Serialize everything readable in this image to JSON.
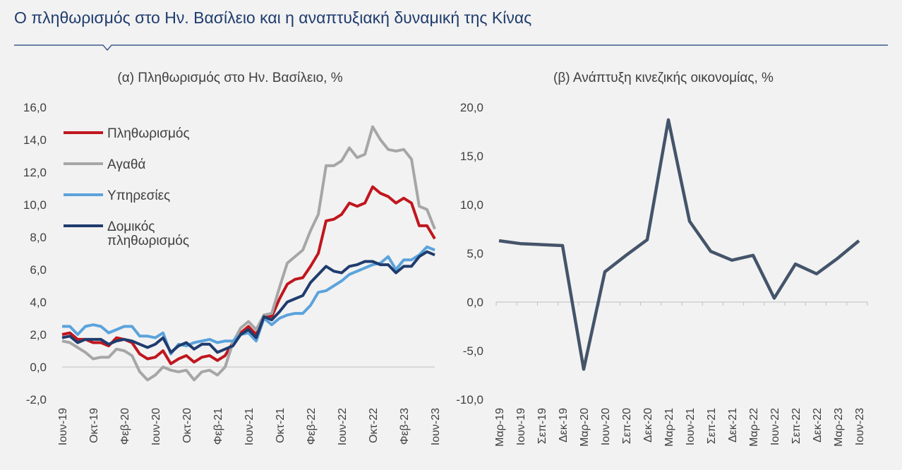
{
  "page": {
    "title": "Ο πληθωρισμός στο Ην. Βασίλειο και η αναπτυξιακή δυναμική της Κίνας",
    "header_rule_color": "#3d5d8c",
    "background": "#f2f2f2"
  },
  "chart_data": [
    {
      "type": "line",
      "title": "(α) Πληθωρισμός στο Ην. Βασίλειο, %",
      "xlabel": "",
      "ylabel": "",
      "ylim": [
        -2,
        16
      ],
      "y_ticks": [
        "-2,0",
        "0,0",
        "2,0",
        "4,0",
        "6,0",
        "8,0",
        "10,0",
        "12,0",
        "14,0",
        "16,0"
      ],
      "x_tick_labels": [
        "Ιουν-19",
        "Οκτ-19",
        "Φεβ-20",
        "Ιουν-20",
        "Οκτ-20",
        "Φεβ-21",
        "Ιουν-21",
        "Οκτ-21",
        "Φεβ-22",
        "Ιουν-22",
        "Οκτ-22",
        "Φεβ-23",
        "Ιουν-23"
      ],
      "x": [
        "Ιουν-19",
        "Ιουλ-19",
        "Αυγ-19",
        "Σεπ-19",
        "Οκτ-19",
        "Νοε-19",
        "Δεκ-19",
        "Ιαν-20",
        "Φεβ-20",
        "Μαρ-20",
        "Απρ-20",
        "Μαϊ-20",
        "Ιουν-20",
        "Ιουλ-20",
        "Αυγ-20",
        "Σεπ-20",
        "Οκτ-20",
        "Νοε-20",
        "Δεκ-20",
        "Ιαν-21",
        "Φεβ-21",
        "Μαρ-21",
        "Απρ-21",
        "Μαϊ-21",
        "Ιουν-21",
        "Ιουλ-21",
        "Αυγ-21",
        "Σεπ-21",
        "Οκτ-21",
        "Νοε-21",
        "Δεκ-21",
        "Ιαν-22",
        "Φεβ-22",
        "Μαρ-22",
        "Απρ-22",
        "Μαϊ-22",
        "Ιουν-22",
        "Ιουλ-22",
        "Αυγ-22",
        "Σεπ-22",
        "Οκτ-22",
        "Νοε-22",
        "Δεκ-22",
        "Ιαν-23",
        "Φεβ-23",
        "Μαρ-23",
        "Απρ-23",
        "Μαϊ-23",
        "Ιουν-23"
      ],
      "grid": false,
      "legend_position": "top-left",
      "series": [
        {
          "name": "Πληθωρισμός",
          "color": "#c0161e",
          "values": [
            2.0,
            2.1,
            1.7,
            1.7,
            1.5,
            1.5,
            1.3,
            1.8,
            1.7,
            1.5,
            0.8,
            0.5,
            0.6,
            1.0,
            0.2,
            0.5,
            0.7,
            0.3,
            0.6,
            0.7,
            0.4,
            0.7,
            1.5,
            2.1,
            2.5,
            2.0,
            3.2,
            3.1,
            4.2,
            5.1,
            5.4,
            5.5,
            6.2,
            7.0,
            9.0,
            9.1,
            9.4,
            10.1,
            9.9,
            10.1,
            11.1,
            10.7,
            10.5,
            10.1,
            10.4,
            10.1,
            8.7,
            8.7,
            7.9
          ]
        },
        {
          "name": "Αγαθά",
          "color": "#a6a6a6",
          "values": [
            1.6,
            1.5,
            1.2,
            0.9,
            0.5,
            0.6,
            0.6,
            1.1,
            1.0,
            0.7,
            -0.3,
            -0.8,
            -0.5,
            0.0,
            -0.2,
            -0.3,
            -0.2,
            -0.8,
            -0.3,
            -0.2,
            -0.5,
            0.0,
            1.5,
            2.4,
            2.8,
            2.3,
            3.2,
            3.3,
            4.9,
            6.4,
            6.8,
            7.2,
            8.4,
            9.4,
            12.4,
            12.4,
            12.7,
            13.5,
            12.9,
            13.1,
            14.8,
            14.0,
            13.4,
            13.3,
            13.4,
            12.8,
            9.9,
            9.7,
            8.5
          ]
        },
        {
          "name": "Υπηρεσίες",
          "color": "#5ba3dc",
          "values": [
            2.5,
            2.5,
            2.0,
            2.5,
            2.6,
            2.5,
            2.1,
            2.3,
            2.5,
            2.5,
            1.9,
            1.9,
            1.8,
            2.1,
            0.8,
            1.4,
            1.3,
            1.5,
            1.6,
            1.7,
            1.5,
            1.6,
            1.6,
            2.0,
            2.1,
            1.6,
            3.0,
            2.6,
            3.0,
            3.2,
            3.3,
            3.3,
            3.8,
            4.6,
            4.7,
            5.0,
            5.3,
            5.7,
            5.9,
            6.1,
            6.3,
            6.4,
            6.8,
            6.0,
            6.6,
            6.6,
            6.9,
            7.4,
            7.2
          ]
        },
        {
          "name": "Δομικός πληθωρισμός",
          "color": "#1f3c6e",
          "values": [
            1.8,
            1.9,
            1.5,
            1.7,
            1.7,
            1.7,
            1.4,
            1.6,
            1.7,
            1.6,
            1.4,
            1.2,
            1.4,
            1.8,
            0.9,
            1.3,
            1.5,
            1.1,
            1.4,
            1.4,
            0.9,
            1.1,
            1.3,
            2.0,
            2.3,
            1.8,
            3.1,
            2.9,
            3.4,
            4.0,
            4.2,
            4.4,
            5.2,
            5.7,
            6.2,
            5.9,
            5.8,
            6.2,
            6.3,
            6.5,
            6.5,
            6.3,
            6.3,
            5.8,
            6.2,
            6.2,
            6.8,
            7.1,
            6.9
          ]
        }
      ],
      "legend_labels": [
        "Πληθωρισμός",
        "Αγαθά",
        "Υπηρεσίες",
        "Δομικός",
        "πληθωρισμός"
      ]
    },
    {
      "type": "line",
      "title": "(β) Ανάπτυξη κινεζικής οικονομίας, %",
      "xlabel": "",
      "ylabel": "",
      "ylim": [
        -10,
        20
      ],
      "y_ticks": [
        "-10,0",
        "-5,0",
        "0,0",
        "5,0",
        "10,0",
        "15,0",
        "20,0"
      ],
      "x": [
        "Μαρ-19",
        "Ιουν-19",
        "Σεπ-19",
        "Δεκ-19",
        "Μαρ-20",
        "Ιουν-20",
        "Σεπ-20",
        "Δεκ-20",
        "Μαρ-21",
        "Ιουν-21",
        "Σεπ-21",
        "Δεκ-21",
        "Μαρ-22",
        "Ιουν-22",
        "Σεπ-22",
        "Δεκ-22",
        "Μαρ-23",
        "Ιουν-23"
      ],
      "x_tick_labels": [
        "Μαρ-19",
        "Ιουν-19",
        "Σεπ-19",
        "Δεκ-19",
        "Μαρ-20",
        "Ιουν-20",
        "Σεπ-20",
        "Δεκ-20",
        "Μαρ-21",
        "Ιουν-21",
        "Σεπ-21",
        "Δεκ-21",
        "Μαρ-22",
        "Ιουν-22",
        "Σεπ-22",
        "Δεκ-22",
        "Μαρ-23",
        "Ιουν-23"
      ],
      "grid": false,
      "series": [
        {
          "color": "#44546a",
          "values": [
            6.3,
            6.0,
            5.9,
            5.8,
            -6.9,
            3.1,
            4.8,
            6.4,
            18.7,
            8.3,
            5.2,
            4.3,
            4.8,
            0.4,
            3.9,
            2.9,
            4.5,
            6.3
          ]
        }
      ]
    }
  ]
}
